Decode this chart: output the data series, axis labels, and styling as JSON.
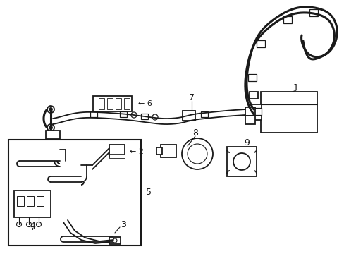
{
  "bg_color": "#ffffff",
  "line_color": "#1a1a1a",
  "lw": 1.3,
  "lw_thick": 2.2,
  "lw_thin": 0.8,
  "fig_w": 4.89,
  "fig_h": 3.6,
  "dpi": 100
}
